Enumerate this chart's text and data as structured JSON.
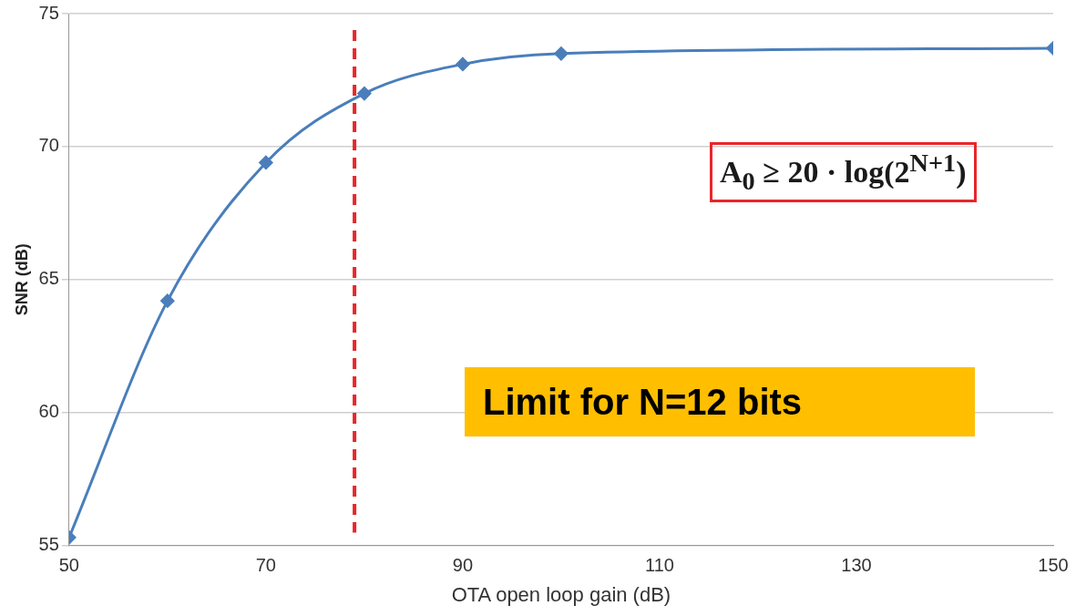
{
  "chart_data": {
    "type": "line",
    "xlabel": "OTA open loop gain (dB)",
    "ylabel": "SNR (dB)",
    "x": [
      50,
      60,
      70,
      80,
      90,
      100,
      150
    ],
    "series": [
      {
        "color": "#4a7ebb",
        "values": [
          55.3,
          64.2,
          69.4,
          72.0,
          73.1,
          73.5,
          73.7
        ]
      }
    ],
    "xlim": [
      50,
      150
    ],
    "xticks": [
      50,
      70,
      90,
      110,
      130,
      150
    ],
    "ylim": [
      55,
      75
    ],
    "yticks": [
      55,
      60,
      65,
      70,
      75
    ],
    "grid": "y",
    "legend": false,
    "marker": "diamond",
    "line_style": "solid",
    "ref_lines": [
      {
        "axis": "x",
        "value": 79,
        "color": "#e8262a",
        "line_style": "dashed"
      }
    ],
    "annotations": [
      "A$_{0}$ ≥ 20 · log(2$^{N+1}$)",
      "Limit for N=12 bits"
    ]
  }
}
